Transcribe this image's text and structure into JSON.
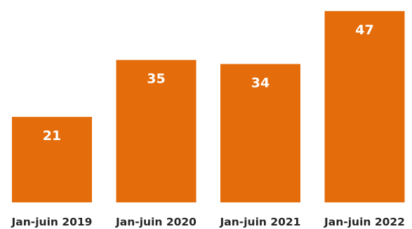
{
  "chart_data": {
    "type": "bar",
    "categories": [
      "Jan-juin 2019",
      "Jan-juin 2020",
      "Jan-juin 2021",
      "Jan-juin 2022"
    ],
    "values": [
      21,
      35,
      34,
      47
    ],
    "title": "",
    "xlabel": "",
    "ylabel": "",
    "ylim": [
      0,
      48
    ],
    "grid": false,
    "legend": "none",
    "data_labels": "inside-top",
    "bar_color": "#E46C0A",
    "label_color": "#FFFFFF",
    "category_label_color": "#262626"
  }
}
